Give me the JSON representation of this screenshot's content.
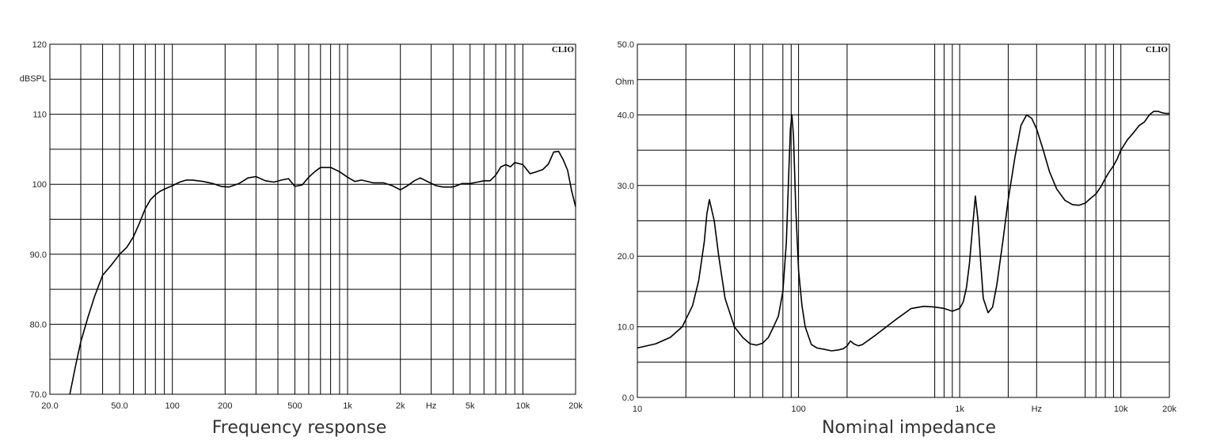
{
  "chart_data": [
    {
      "type": "line",
      "title": "Frequency response",
      "brand": "CLIO",
      "xlabel": "",
      "ylabel": "",
      "x_scale": "log",
      "xlim": [
        20,
        20000
      ],
      "ylim": [
        70,
        120
      ],
      "unit_label": "dBSPL",
      "y_tick_labels": [
        {
          "value": 120,
          "label": "120"
        },
        {
          "value": 110,
          "label": "110"
        },
        {
          "value": 100,
          "label": "100"
        },
        {
          "value": 90,
          "label": "90.0"
        },
        {
          "value": 80,
          "label": "80.0"
        },
        {
          "value": 70,
          "label": "70.0"
        }
      ],
      "y_gridlines": [
        70,
        75,
        80,
        85,
        90,
        95,
        100,
        105,
        110,
        115,
        120
      ],
      "x_tick_labels": [
        {
          "value": 20,
          "label": "20.0"
        },
        {
          "value": 50,
          "label": "50.0"
        },
        {
          "value": 100,
          "label": "100"
        },
        {
          "value": 200,
          "label": "200"
        },
        {
          "value": 500,
          "label": "500"
        },
        {
          "value": 1000,
          "label": "1k"
        },
        {
          "value": 2000,
          "label": "2k"
        },
        {
          "value": 3000,
          "label": "Hz"
        },
        {
          "value": 5000,
          "label": "5k"
        },
        {
          "value": 10000,
          "label": "10k"
        },
        {
          "value": 20000,
          "label": "20k"
        }
      ],
      "x_gridlines": [
        20,
        30,
        40,
        50,
        60,
        70,
        80,
        90,
        100,
        200,
        300,
        400,
        500,
        600,
        700,
        800,
        900,
        1000,
        2000,
        3000,
        4000,
        5000,
        6000,
        7000,
        8000,
        9000,
        10000,
        20000
      ],
      "grid": true,
      "series": [
        {
          "x": [
            26,
            28,
            30,
            33,
            36,
            40,
            45,
            50,
            55,
            60,
            65,
            70,
            75,
            80,
            85,
            90,
            100,
            110,
            120,
            130,
            150,
            170,
            190,
            210,
            240,
            270,
            300,
            340,
            380,
            420,
            460,
            500,
            550,
            600,
            650,
            700,
            800,
            900,
            1000,
            1100,
            1200,
            1400,
            1600,
            1800,
            2000,
            2200,
            2400,
            2600,
            2900,
            3200,
            3500,
            4000,
            4500,
            5000,
            5500,
            6000,
            6500,
            7000,
            7500,
            8000,
            8500,
            9000,
            10000,
            11000,
            12000,
            13000,
            14000,
            15000,
            16000,
            17000,
            18000,
            19000,
            20000
          ],
          "y": [
            70,
            74,
            77.5,
            81,
            84,
            87,
            88.5,
            90,
            91,
            92.5,
            94.5,
            96.5,
            97.8,
            98.5,
            99,
            99.3,
            99.8,
            100.3,
            100.6,
            100.6,
            100.4,
            100.1,
            99.7,
            99.6,
            100.1,
            100.9,
            101.1,
            100.5,
            100.3,
            100.6,
            100.8,
            99.7,
            99.9,
            101,
            101.8,
            102.4,
            102.4,
            101.8,
            101,
            100.4,
            100.6,
            100.2,
            100.2,
            99.8,
            99.2,
            99.8,
            100.5,
            100.9,
            100.3,
            99.8,
            99.6,
            99.6,
            100.1,
            100.1,
            100.3,
            100.5,
            100.5,
            101.3,
            102.5,
            102.8,
            102.5,
            103.1,
            102.8,
            101.5,
            101.8,
            102.1,
            102.9,
            104.6,
            104.7,
            103.5,
            102,
            99,
            96.8
          ]
        }
      ]
    },
    {
      "type": "line",
      "title": "Nominal impedance",
      "brand": "CLIO",
      "xlabel": "",
      "ylabel": "",
      "x_scale": "log",
      "xlim": [
        10,
        20000
      ],
      "ylim": [
        0,
        50
      ],
      "unit_label": "Ohm",
      "y_tick_labels": [
        {
          "value": 50,
          "label": "50.0"
        },
        {
          "value": 40,
          "label": "40.0"
        },
        {
          "value": 30,
          "label": "30.0"
        },
        {
          "value": 20,
          "label": "20.0"
        },
        {
          "value": 10,
          "label": "10.0"
        },
        {
          "value": 0,
          "label": "0.0"
        }
      ],
      "y_gridlines": [
        0,
        5,
        10,
        15,
        20,
        25,
        30,
        35,
        40,
        45,
        50
      ],
      "x_tick_labels": [
        {
          "value": 10,
          "label": "10"
        },
        {
          "value": 100,
          "label": "100"
        },
        {
          "value": 1000,
          "label": "1k"
        },
        {
          "value": 3000,
          "label": "Hz"
        },
        {
          "value": 10000,
          "label": "10k"
        },
        {
          "value": 20000,
          "label": "20k"
        }
      ],
      "x_gridlines": [
        10,
        20,
        40,
        50,
        60,
        80,
        90,
        100,
        200,
        700,
        800,
        900,
        1000,
        2000,
        3000,
        6000,
        7000,
        8000,
        9000,
        10000,
        20000
      ],
      "grid": true,
      "series": [
        {
          "x": [
            10,
            13,
            16,
            19,
            22,
            24,
            26,
            27,
            28,
            30,
            32,
            35,
            40,
            45,
            50,
            55,
            60,
            65,
            70,
            75,
            80,
            84,
            87,
            89,
            91,
            93,
            96,
            100,
            105,
            110,
            120,
            130,
            145,
            160,
            175,
            190,
            200,
            210,
            220,
            235,
            250,
            300,
            400,
            500,
            600,
            700,
            800,
            900,
            1000,
            1050,
            1100,
            1150,
            1200,
            1250,
            1300,
            1350,
            1400,
            1500,
            1600,
            1700,
            1850,
            2000,
            2200,
            2400,
            2600,
            2800,
            3000,
            3300,
            3600,
            4000,
            4500,
            5000,
            5500,
            6000,
            6500,
            7000,
            7500,
            8000,
            8500,
            9000,
            9500,
            10000,
            11000,
            12000,
            13000,
            14000,
            15000,
            16000,
            17000,
            18000,
            19000,
            20000
          ],
          "y": [
            7,
            7.6,
            8.5,
            10,
            13,
            16.5,
            22,
            26,
            28,
            25,
            20,
            14,
            10,
            8.5,
            7.6,
            7.4,
            7.7,
            8.5,
            10,
            11.5,
            15,
            22,
            32,
            38,
            40,
            37,
            27,
            18,
            13,
            10,
            7.5,
            7,
            6.8,
            6.6,
            6.7,
            6.9,
            7.3,
            8,
            7.6,
            7.3,
            7.5,
            8.8,
            11,
            12.6,
            12.9,
            12.8,
            12.6,
            12.2,
            12.6,
            13.5,
            15.5,
            19,
            24,
            28.5,
            25,
            19,
            14,
            12,
            12.8,
            16,
            22,
            28,
            34,
            38.5,
            40,
            39.5,
            38,
            35,
            32,
            29.5,
            27.9,
            27.3,
            27.2,
            27.5,
            28.2,
            28.8,
            29.8,
            31,
            32,
            32.8,
            33.8,
            35,
            36.5,
            37.5,
            38.5,
            39,
            40,
            40.5,
            40.5,
            40.3,
            40.2,
            40.2
          ]
        }
      ]
    }
  ],
  "captions": {
    "left": "Frequency response",
    "right": "Nominal impedance"
  }
}
